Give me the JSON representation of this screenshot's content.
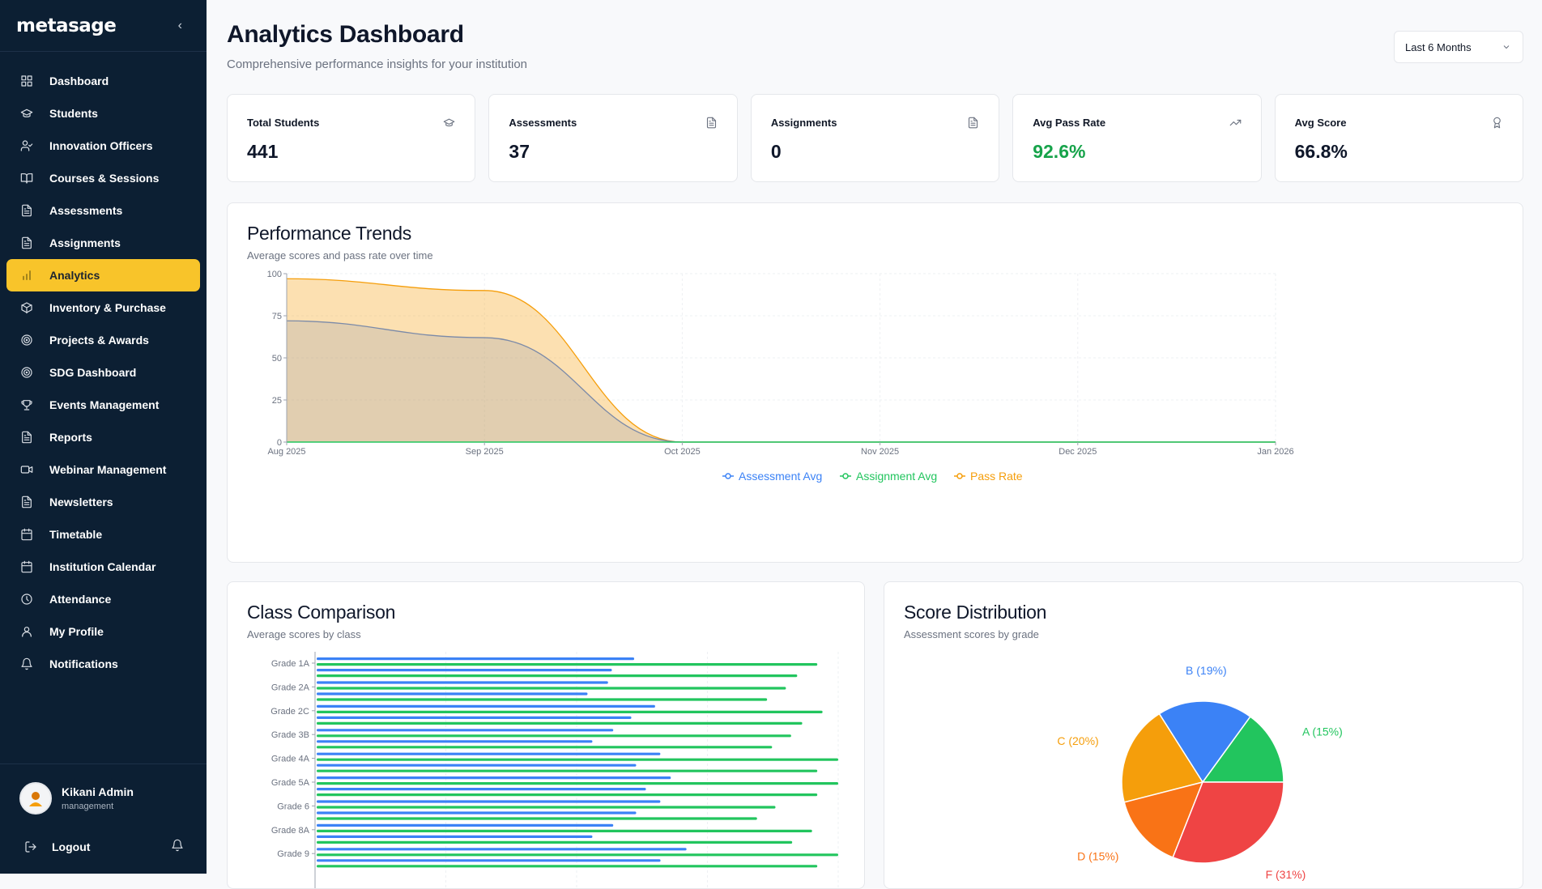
{
  "app": {
    "logo": "metasage"
  },
  "sidebar": {
    "items": [
      {
        "label": "Dashboard",
        "icon": "dashboard-icon"
      },
      {
        "label": "Students",
        "icon": "graduation-cap-icon"
      },
      {
        "label": "Innovation Officers",
        "icon": "user-check-icon"
      },
      {
        "label": "Courses & Sessions",
        "icon": "book-open-icon"
      },
      {
        "label": "Assessments",
        "icon": "file-text-icon"
      },
      {
        "label": "Assignments",
        "icon": "file-text-icon"
      },
      {
        "label": "Analytics",
        "icon": "bar-chart-icon",
        "active": true
      },
      {
        "label": "Inventory & Purchase",
        "icon": "package-icon"
      },
      {
        "label": "Projects & Awards",
        "icon": "target-icon"
      },
      {
        "label": "SDG Dashboard",
        "icon": "target-icon"
      },
      {
        "label": "Events Management",
        "icon": "trophy-icon"
      },
      {
        "label": "Reports",
        "icon": "file-text-icon"
      },
      {
        "label": "Webinar Management",
        "icon": "video-icon"
      },
      {
        "label": "Newsletters",
        "icon": "file-text-icon"
      },
      {
        "label": "Timetable",
        "icon": "calendar-icon"
      },
      {
        "label": "Institution Calendar",
        "icon": "calendar-icon"
      },
      {
        "label": "Attendance",
        "icon": "clock-icon"
      },
      {
        "label": "My Profile",
        "icon": "user-icon"
      },
      {
        "label": "Notifications",
        "icon": "bell-icon"
      }
    ],
    "user": {
      "name": "Kikani Admin",
      "role": "management"
    },
    "logout_label": "Logout"
  },
  "header": {
    "title": "Analytics Dashboard",
    "subtitle": "Comprehensive performance insights for your institution",
    "range_value": "Last 6 Months"
  },
  "stats": [
    {
      "label": "Total Students",
      "value": "441",
      "icon": "graduation-cap-icon"
    },
    {
      "label": "Assessments",
      "value": "37",
      "icon": "file-text-icon"
    },
    {
      "label": "Assignments",
      "value": "0",
      "icon": "file-text-icon"
    },
    {
      "label": "Avg Pass Rate",
      "value": "92.6%",
      "icon": "trending-up-icon",
      "accent": "#16a34a"
    },
    {
      "label": "Avg Score",
      "value": "66.8%",
      "icon": "award-icon"
    }
  ],
  "trend_panel": {
    "title": "Performance Trends",
    "subtitle": "Average scores and pass rate over time"
  },
  "class_panel": {
    "title": "Class Comparison",
    "subtitle": "Average scores by class"
  },
  "score_panel": {
    "title": "Score Distribution",
    "subtitle": "Assessment scores by grade"
  },
  "colors": {
    "blue": "#3b82f6",
    "green": "#22c55e",
    "orange": "#f59e0b",
    "orange_dark": "#f97316",
    "red": "#ef4444",
    "accent": "#f8c42a",
    "sidebar": "#0c1f33"
  },
  "chart_data": [
    {
      "type": "area",
      "title": "Performance Trends",
      "x": [
        "Aug 2025",
        "Sep 2025",
        "Oct 2025",
        "Nov 2025",
        "Dec 2025",
        "Jan 2026"
      ],
      "series": [
        {
          "name": "Assessment Avg",
          "values": [
            72,
            62,
            0,
            0,
            0,
            0
          ]
        },
        {
          "name": "Assignment Avg",
          "values": [
            0,
            0,
            0,
            0,
            0,
            0
          ]
        },
        {
          "name": "Pass Rate",
          "values": [
            97,
            90,
            0,
            0,
            0,
            0
          ]
        }
      ],
      "yticks": [
        0,
        25,
        50,
        75,
        100
      ],
      "ylim": [
        0,
        100
      ],
      "legend": "bottom"
    },
    {
      "type": "bar",
      "title": "Class Comparison",
      "orientation": "horizontal",
      "categories": [
        "Grade 1A",
        "Grade 2A",
        "Grade 2C",
        "Grade 3B",
        "Grade 4A",
        "Grade 5A",
        "Grade 6",
        "Grade 8A",
        "Grade 9"
      ],
      "series": [
        {
          "name": "Assessment Avg",
          "values": [
            61,
            56,
            65,
            57,
            66,
            68,
            66,
            57,
            71
          ]
        },
        {
          "name": "Pass Rate",
          "values": [
            96,
            90,
            97,
            91,
            100,
            100,
            88,
            95,
            100
          ]
        }
      ],
      "xlim": [
        0,
        100
      ]
    },
    {
      "type": "pie",
      "title": "Score Distribution",
      "labels": [
        "A",
        "B",
        "C",
        "D",
        "F"
      ],
      "values": [
        15,
        19,
        20,
        15,
        31
      ],
      "slice_labels": [
        "A (15%)",
        "B (19%)",
        "C (20%)",
        "D (15%)",
        "F (31%)"
      ]
    }
  ]
}
